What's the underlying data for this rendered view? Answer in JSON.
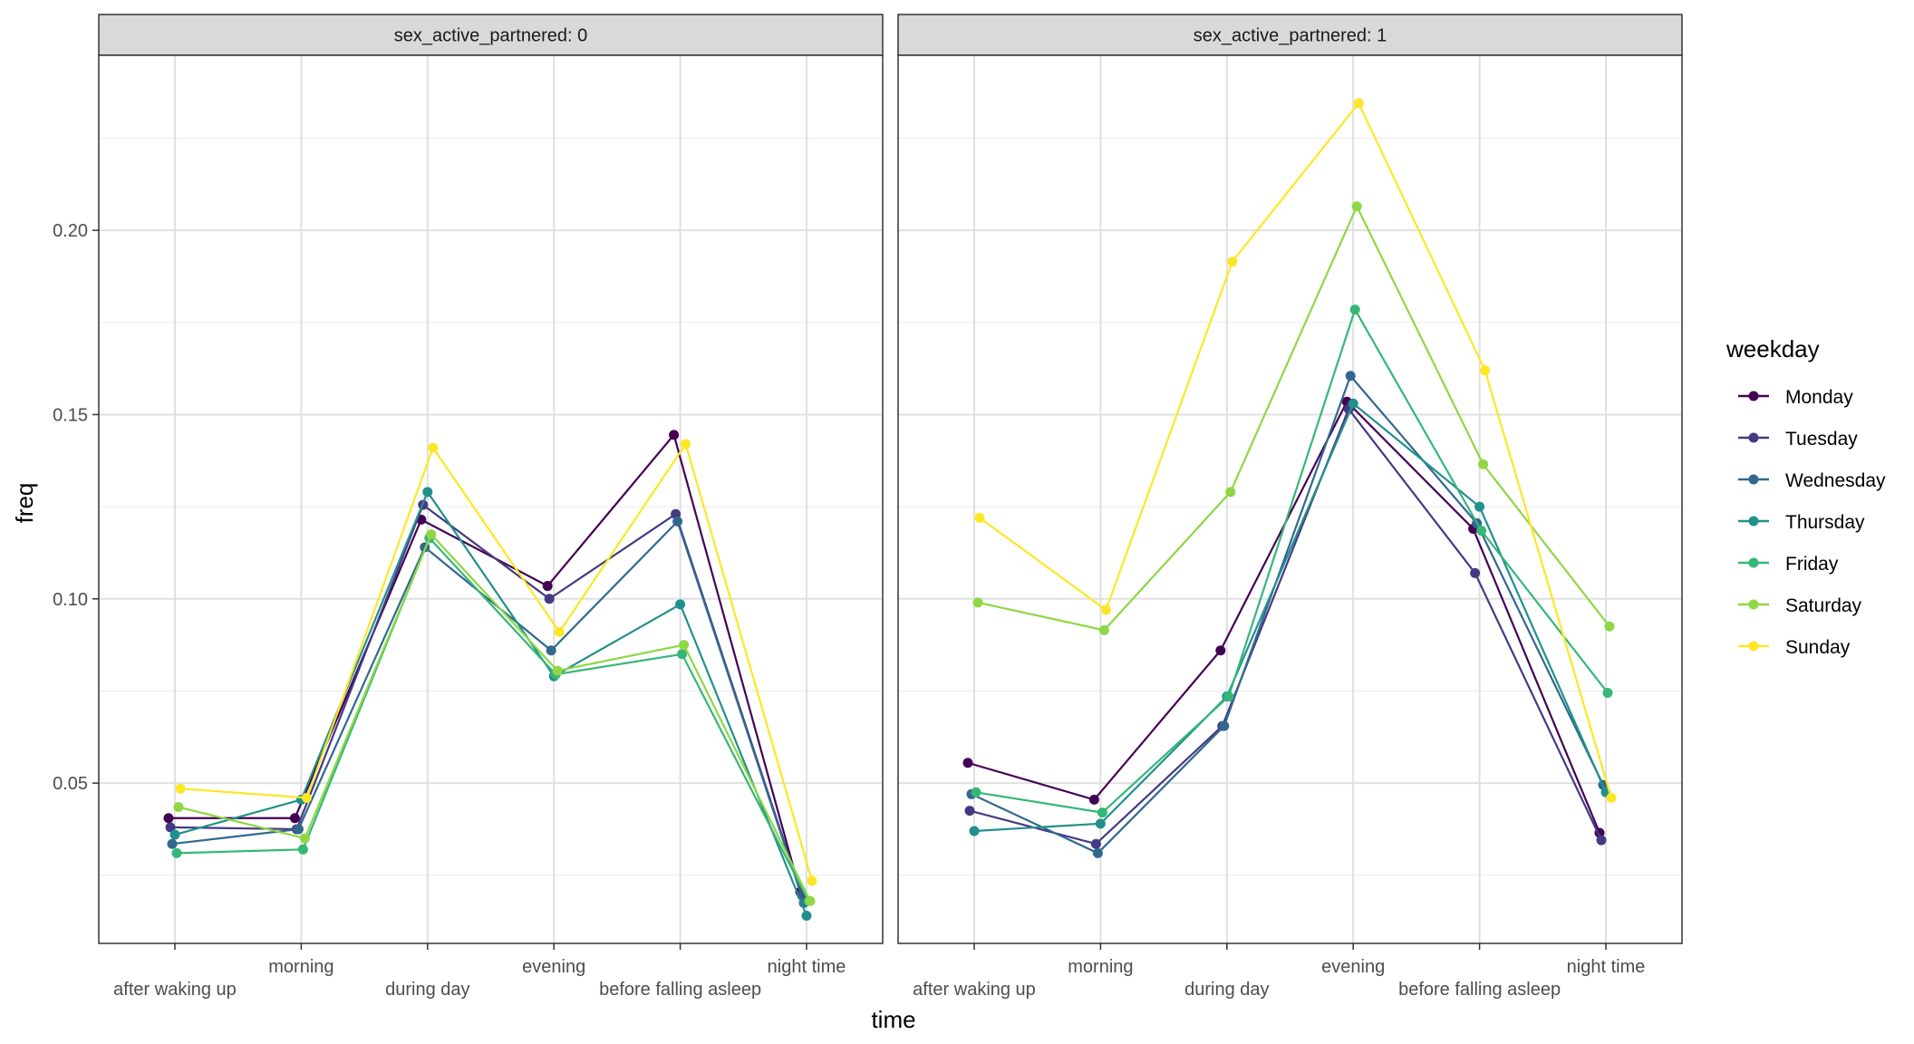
{
  "chart_data": {
    "type": "line",
    "xlabel": "time",
    "ylabel": "freq",
    "categories": [
      "after waking up",
      "morning",
      "during day",
      "evening",
      "before falling asleep",
      "night time"
    ],
    "yticks": [
      0.05,
      0.1,
      0.15,
      0.2
    ],
    "ytick_labels": [
      "0.05",
      "0.10",
      "0.15",
      "0.20"
    ],
    "ylim": [
      0.0065,
      0.2475
    ],
    "grid": true,
    "legend": {
      "title": "weekday",
      "position": "right",
      "entries": [
        "Monday",
        "Tuesday",
        "Wednesday",
        "Thursday",
        "Friday",
        "Saturday",
        "Sunday"
      ]
    },
    "colors": {
      "Monday": "#440154",
      "Tuesday": "#443A83",
      "Wednesday": "#31688E",
      "Thursday": "#21908C",
      "Friday": "#35B779",
      "Saturday": "#8FD744",
      "Sunday": "#FDE725"
    },
    "panels": [
      {
        "strip": "sex_active_partnered: 0",
        "series": [
          {
            "name": "Monday",
            "values": [
              0.0405,
              0.0405,
              0.1215,
              0.1035,
              0.1445,
              0.0205
            ]
          },
          {
            "name": "Tuesday",
            "values": [
              0.038,
              0.0375,
              0.1255,
              0.1,
              0.123,
              0.0195
            ]
          },
          {
            "name": "Wednesday",
            "values": [
              0.0335,
              0.0375,
              0.114,
              0.086,
              0.121,
              0.0175
            ]
          },
          {
            "name": "Thursday",
            "values": [
              0.036,
              0.0455,
              0.129,
              0.079,
              0.0985,
              0.014
            ]
          },
          {
            "name": "Friday",
            "values": [
              0.031,
              0.032,
              0.1165,
              0.0795,
              0.085,
              0.018
            ]
          },
          {
            "name": "Saturday",
            "values": [
              0.0435,
              0.035,
              0.1175,
              0.0805,
              0.0875,
              0.018
            ]
          },
          {
            "name": "Sunday",
            "values": [
              0.0485,
              0.046,
              0.141,
              0.091,
              0.142,
              0.0235
            ]
          }
        ]
      },
      {
        "strip": "sex_active_partnered: 1",
        "series": [
          {
            "name": "Monday",
            "values": [
              0.0555,
              0.0455,
              0.086,
              0.1535,
              0.119,
              0.0365
            ]
          },
          {
            "name": "Tuesday",
            "values": [
              0.0425,
              0.0335,
              0.0655,
              0.1515,
              0.107,
              0.0345
            ]
          },
          {
            "name": "Wednesday",
            "values": [
              0.047,
              0.031,
              0.0655,
              0.1605,
              0.1205,
              0.0495
            ]
          },
          {
            "name": "Thursday",
            "values": [
              0.037,
              0.039,
              0.0735,
              0.153,
              0.125,
              0.0475
            ]
          },
          {
            "name": "Friday",
            "values": [
              0.0475,
              0.042,
              0.0735,
              0.1785,
              0.1185,
              0.0745
            ]
          },
          {
            "name": "Saturday",
            "values": [
              0.099,
              0.0915,
              0.129,
              0.2065,
              0.1365,
              0.0925
            ]
          },
          {
            "name": "Sunday",
            "values": [
              0.122,
              0.097,
              0.1915,
              0.2345,
              0.162,
              0.046
            ]
          }
        ]
      }
    ]
  }
}
